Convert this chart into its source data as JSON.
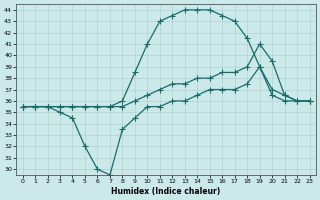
{
  "xlabel": "Humidex (Indice chaleur)",
  "bg_color": "#cce9e9",
  "grid_color": "#aacccc",
  "line_color": "#1a6b6b",
  "xlim": [
    -0.5,
    23.5
  ],
  "ylim": [
    29.5,
    44.5
  ],
  "xticks": [
    0,
    1,
    2,
    3,
    4,
    5,
    6,
    7,
    8,
    9,
    10,
    11,
    12,
    13,
    14,
    15,
    16,
    17,
    18,
    19,
    20,
    21,
    22,
    23
  ],
  "yticks": [
    30,
    31,
    32,
    33,
    34,
    35,
    36,
    37,
    38,
    39,
    40,
    41,
    42,
    43,
    44
  ],
  "line1_x": [
    0,
    1,
    2,
    3,
    4,
    5,
    6,
    7,
    8,
    9,
    10,
    11,
    12,
    13,
    14,
    15,
    16,
    17,
    18,
    19,
    20,
    21,
    22,
    23
  ],
  "line1_y": [
    35.5,
    35.5,
    35.5,
    35.5,
    35.5,
    35.5,
    35.5,
    35.5,
    35.5,
    36.0,
    36.5,
    37.0,
    37.5,
    37.5,
    38.0,
    38.0,
    38.5,
    38.5,
    39.0,
    41.0,
    39.5,
    36.5,
    36.0,
    36.0
  ],
  "line2_x": [
    0,
    1,
    2,
    3,
    4,
    5,
    6,
    7,
    8,
    9,
    10,
    11,
    12,
    13,
    14,
    15,
    16,
    17,
    18,
    19,
    20,
    21,
    22,
    23
  ],
  "line2_y": [
    35.5,
    35.5,
    35.5,
    35.5,
    35.5,
    35.5,
    35.5,
    35.5,
    36.0,
    38.5,
    41.0,
    43.0,
    43.5,
    44.0,
    44.0,
    44.0,
    43.5,
    43.0,
    41.5,
    39.0,
    37.0,
    36.5,
    36.0,
    36.0
  ],
  "line3_x": [
    0,
    1,
    2,
    3,
    4,
    5,
    6,
    7,
    8,
    9,
    10,
    11,
    12,
    13,
    14,
    15,
    16,
    17,
    18,
    19,
    20,
    21,
    22,
    23
  ],
  "line3_y": [
    35.5,
    35.5,
    35.5,
    35.0,
    34.5,
    32.0,
    30.0,
    29.5,
    33.5,
    34.5,
    35.5,
    35.5,
    36.0,
    36.0,
    36.5,
    37.0,
    37.0,
    37.0,
    37.5,
    39.0,
    36.5,
    36.0,
    36.0,
    36.0
  ]
}
